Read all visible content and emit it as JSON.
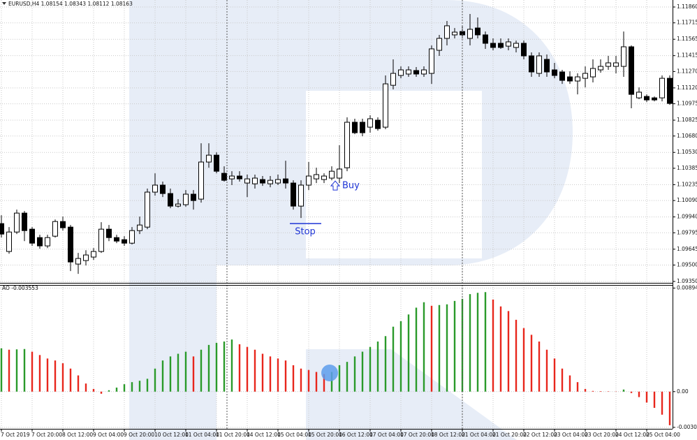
{
  "chart_data": [
    {
      "type": "candlestick",
      "title": "EURUSD,H4 1.08154 1.08343 1.08112 1.08163",
      "categories": [
        "7 Oct 2019",
        null,
        null,
        null,
        "7 Oct 20:00",
        null,
        null,
        null,
        "8 Oct 12:00",
        null,
        null,
        null,
        "9 Oct 04:00",
        null,
        null,
        null,
        "9 Oct 20:00",
        null,
        null,
        null,
        "10 Oct 12:00",
        null,
        null,
        null,
        "11 Oct 04:00",
        null,
        null,
        null,
        "11 Oct 20:00",
        null,
        null,
        null,
        "14 Oct 12:00",
        null,
        null,
        null,
        "15 Oct 04:00",
        null,
        null,
        null,
        "15 Oct 20:00",
        null,
        null,
        null,
        "16 Oct 12:00",
        null,
        null,
        null,
        "17 Oct 04:00",
        null,
        null,
        null,
        "17 Oct 20:00",
        null,
        null,
        null,
        "18 Oct 12:00",
        null,
        null,
        null,
        "21 Oct 04:00",
        null,
        null,
        null,
        "21 Oct 20:00",
        null,
        null,
        null,
        "22 Oct 12:00",
        null,
        null,
        null,
        "23 Oct 04:00",
        null,
        null,
        null,
        "23 Oct 20:00",
        null,
        null,
        null,
        "24 Oct 12:00",
        null,
        null,
        null,
        "25 Oct 04:00",
        null,
        null,
        null
      ],
      "open": [
        1.09879,
        1.09624,
        1.09802,
        1.09975,
        1.09828,
        1.09751,
        1.09675,
        1.09764,
        1.09898,
        1.09847,
        1.09509,
        1.09541,
        1.09573,
        1.09624,
        1.09828,
        1.09751,
        1.09732,
        1.097,
        1.09815,
        1.09847,
        1.10167,
        1.10231,
        1.10154,
        1.10039,
        1.10052,
        1.10148,
        1.10103,
        1.10442,
        1.10505,
        1.10339,
        1.10288,
        1.10314,
        1.1025,
        1.10243,
        1.10282,
        1.10243,
        1.1025,
        1.10288,
        1.1025,
        1.10039,
        1.10231,
        1.10288,
        1.10282,
        1.10295,
        1.10295,
        1.1039,
        1.10806,
        1.10806,
        1.10761,
        1.10825,
        1.10761,
        1.11144,
        1.11234,
        1.11247,
        1.11279,
        1.11247,
        1.11253,
        1.11464,
        1.11573,
        1.11605,
        1.11636,
        1.11573,
        1.11668,
        1.11605,
        1.11528,
        1.11528,
        1.11502,
        1.1149,
        1.11528,
        1.11413,
        1.11253,
        1.11381,
        1.11285,
        1.11266,
        1.11221,
        1.11183,
        1.11208,
        1.11221,
        1.11285,
        1.11317,
        1.11317,
        1.11317,
        1.11496,
        1.11029,
        1.11042,
        1.11029,
        1.11029,
        1.11208
      ],
      "high": [
        1.09956,
        1.09847,
        1.10007,
        1.09994,
        1.09847,
        1.09777,
        1.09777,
        1.09917,
        1.09943,
        1.09866,
        1.09611,
        1.09636,
        1.09655,
        1.09892,
        1.09866,
        1.09777,
        1.09764,
        1.09847,
        1.09943,
        1.10199,
        1.10339,
        1.10263,
        1.10199,
        1.10103,
        1.10186,
        1.10186,
        1.10614,
        1.10614,
        1.10531,
        1.10403,
        1.10358,
        1.10358,
        1.10327,
        1.10327,
        1.10314,
        1.10314,
        1.10327,
        1.10454,
        1.10275,
        1.10275,
        1.10442,
        1.1039,
        1.10339,
        1.10403,
        1.10595,
        1.10851,
        1.10838,
        1.10838,
        1.1087,
        1.10851,
        1.11234,
        1.11381,
        1.11317,
        1.11317,
        1.11311,
        1.11317,
        1.11509,
        1.11605,
        1.11732,
        1.11668,
        1.11681,
        1.11796,
        1.11764,
        1.11636,
        1.11573,
        1.11573,
        1.11573,
        1.11553,
        1.11553,
        1.11445,
        1.11445,
        1.11426,
        1.11349,
        1.11285,
        1.11272,
        1.11253,
        1.11317,
        1.11381,
        1.11381,
        1.11413,
        1.11413,
        1.11636,
        1.11509,
        1.11125,
        1.11061,
        1.11042,
        1.11234,
        1.11234
      ],
      "low": [
        1.09751,
        1.09604,
        1.09783,
        1.09719,
        1.09675,
        1.09649,
        1.09655,
        1.09751,
        1.09815,
        1.09445,
        1.09419,
        1.09496,
        1.09547,
        1.09611,
        1.09719,
        1.097,
        1.09675,
        1.09688,
        1.09783,
        1.09828,
        1.10135,
        1.10122,
        1.1002,
        1.10026,
        1.10033,
        1.10007,
        1.10071,
        1.1039,
        1.10339,
        1.10263,
        1.10231,
        1.10263,
        1.10122,
        1.10199,
        1.10224,
        1.10211,
        1.10231,
        1.10199,
        1.10007,
        1.0993,
        1.10186,
        1.1025,
        1.1025,
        1.10275,
        1.1025,
        1.10358,
        1.10697,
        1.10678,
        1.1071,
        1.10729,
        1.10742,
        1.11106,
        1.11208,
        1.11221,
        1.11221,
        1.11221,
        1.11157,
        1.11413,
        1.11509,
        1.11573,
        1.11573,
        1.11509,
        1.11573,
        1.11477,
        1.11464,
        1.11477,
        1.11464,
        1.11445,
        1.11381,
        1.11221,
        1.11221,
        1.11221,
        1.11208,
        1.11157,
        1.11157,
        1.11061,
        1.11125,
        1.1117,
        1.11259,
        1.11285,
        1.11253,
        1.11221,
        1.10934,
        1.11017,
        1.10991,
        1.10997,
        1.10997,
        1.10965
      ],
      "close": [
        1.09783,
        1.09802,
        1.09975,
        1.09815,
        1.097,
        1.09675,
        1.09751,
        1.09898,
        1.09841,
        1.09528,
        1.0956,
        1.09592,
        1.09624,
        1.09828,
        1.09751,
        1.09719,
        1.097,
        1.09815,
        1.09866,
        1.10167,
        1.10231,
        1.10154,
        1.10039,
        1.10058,
        1.10148,
        1.1009,
        1.10442,
        1.10505,
        1.10358,
        1.10275,
        1.10314,
        1.10288,
        1.10288,
        1.10295,
        1.1025,
        1.10275,
        1.10282,
        1.1025,
        1.10039,
        1.10231,
        1.10314,
        1.10327,
        1.10314,
        1.10358,
        1.10378,
        1.10806,
        1.1071,
        1.1071,
        1.10838,
        1.10748,
        1.11157,
        1.11253,
        1.11285,
        1.11285,
        1.11247,
        1.11285,
        1.11477,
        1.11573,
        1.11688,
        1.1163,
        1.11605,
        1.11656,
        1.11605,
        1.11528,
        1.1149,
        1.1149,
        1.11541,
        1.11528,
        1.11413,
        1.11266,
        1.11413,
        1.11266,
        1.11234,
        1.11189,
        1.11183,
        1.11221,
        1.11253,
        1.11298,
        1.11317,
        1.11349,
        1.11349,
        1.11496,
        1.11061,
        1.11081,
        1.1101,
        1.1101,
        1.11208,
        1.10978
      ],
      "up_color": "#ffffff",
      "down_color": "#000000",
      "ylim": [
        1.09337,
        1.11924
      ],
      "yticks": [
        {
          "value": 1.1186,
          "label": "1.11860"
        },
        {
          "value": 1.11715,
          "label": "1.11715"
        },
        {
          "value": 1.11565,
          "label": "1.11565"
        },
        {
          "value": 1.11415,
          "label": "1.11415"
        },
        {
          "value": 1.1127,
          "label": "1.11270"
        },
        {
          "value": 1.1112,
          "label": "1.11120"
        },
        {
          "value": 1.10975,
          "label": "1.10975"
        },
        {
          "value": 1.10825,
          "label": "1.10825"
        },
        {
          "value": 1.1068,
          "label": "1.10680"
        },
        {
          "value": 1.1053,
          "label": "1.10530"
        },
        {
          "value": 1.10385,
          "label": "1.10385"
        },
        {
          "value": 1.10235,
          "label": "1.10235"
        },
        {
          "value": 1.1009,
          "label": "1.10090"
        },
        {
          "value": 1.0994,
          "label": "1.09940"
        },
        {
          "value": 1.09795,
          "label": "1.09795"
        },
        {
          "value": 1.09645,
          "label": "1.09645"
        },
        {
          "value": 1.095,
          "label": "1.09500"
        },
        {
          "value": 1.0935,
          "label": "1.09350"
        }
      ],
      "grid": true,
      "buy": {
        "label": "Buy",
        "value": 1.10224,
        "index": 43,
        "color": "#1f35d6"
      },
      "stop": {
        "label": "Stop",
        "value": 1.09879,
        "index": 39,
        "color": "#1f35d6"
      }
    },
    {
      "type": "bar",
      "title": "AO -0.003553",
      "values": [
        0.00374,
        0.00362,
        0.00365,
        0.00368,
        0.00345,
        0.00316,
        0.00286,
        0.00269,
        0.00245,
        0.00199,
        0.0014,
        0.0007,
        0.00023,
        -0.00018,
        0.00012,
        0.00035,
        0.00064,
        0.00082,
        0.00094,
        0.00111,
        0.00199,
        0.00269,
        0.00304,
        0.00327,
        0.00345,
        0.00304,
        0.00362,
        0.00403,
        0.00421,
        0.00433,
        0.0045,
        0.00409,
        0.00386,
        0.00362,
        0.00327,
        0.00304,
        0.00286,
        0.00269,
        0.00228,
        0.00199,
        0.00187,
        0.0017,
        0.00152,
        0.0017,
        0.00228,
        0.00257,
        0.00304,
        0.00345,
        0.00386,
        0.00433,
        0.00479,
        0.00561,
        0.00608,
        0.00666,
        0.00725,
        0.00772,
        0.00742,
        0.00748,
        0.00754,
        0.00783,
        0.00801,
        0.00842,
        0.00853,
        0.00859,
        0.00795,
        0.00736,
        0.00696,
        0.0062,
        0.00549,
        0.00491,
        0.00433,
        0.00362,
        0.00286,
        0.00199,
        0.0014,
        0.00082,
        0.00023,
        6e-05,
        4e-05,
        3e-05,
        2e-05,
        0.00018,
        -0.00012,
        -0.00047,
        -0.00094,
        -0.0014,
        -0.00199,
        -0.0029
      ],
      "up_color": "#2a9a2a",
      "down_color": "#e8261c",
      "ylim": [
        -0.00315,
        0.00915
      ],
      "yticks": [
        0.008942,
        {
          "value": 0,
          "label": "0.00"
        },
        -0.003083
      ],
      "grid": true
    }
  ]
}
